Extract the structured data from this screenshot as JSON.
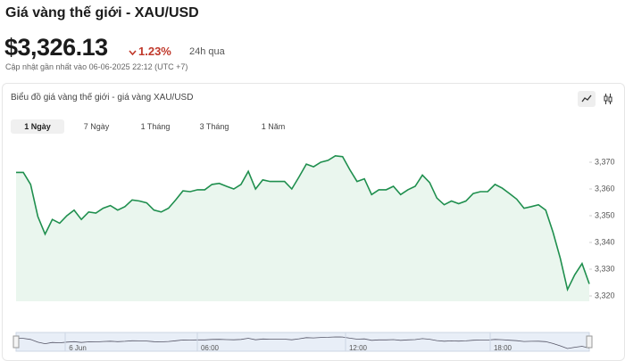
{
  "header": {
    "title": "Giá vàng thế giới - XAU/USD",
    "price": "$3,326.13",
    "change": "1.23%",
    "period": "24h qua",
    "updated": "Cập nhật gần nhất vào 06-06-2025 22:12 (UTC +7)"
  },
  "panel": {
    "title": "Biểu đồ giá vàng thế giới - giá vàng XAU/USD",
    "tabs": [
      "1 Ngày",
      "7 Ngày",
      "1 Tháng",
      "3 Tháng",
      "1 Năm"
    ]
  },
  "navigator": {
    "labels": [
      "6 Jun",
      "06:00",
      "12:00",
      "18:00"
    ]
  },
  "chart_data": {
    "type": "line",
    "color": "#1f8f4e",
    "values": [
      3366.2,
      3366.2,
      3361.7,
      3349.7,
      3343.1,
      3348.6,
      3347.2,
      3350,
      3352.1,
      3348.6,
      3351.4,
      3351,
      3352.8,
      3353.8,
      3352.1,
      3353.4,
      3355.9,
      3355.5,
      3354.8,
      3352.1,
      3351.4,
      3352.8,
      3355.9,
      3359.3,
      3359,
      3359.7,
      3359.7,
      3361.7,
      3362.1,
      3361,
      3360,
      3361.7,
      3366.6,
      3360,
      3363.4,
      3362.8,
      3362.8,
      3362.8,
      3360,
      3364.5,
      3369.3,
      3368.3,
      3370,
      3370.7,
      3372.4,
      3372.1,
      3367.2,
      3362.8,
      3363.8,
      3357.9,
      3359.7,
      3359.7,
      3361,
      3357.9,
      3359.7,
      3361,
      3365.2,
      3362.4,
      3356.6,
      3354.1,
      3355.5,
      3354.5,
      3355.5,
      3358.3,
      3359,
      3359,
      3361.7,
      3360.3,
      3358.3,
      3356.2,
      3352.8,
      3353.4,
      3354.1,
      3352.1,
      3343.8,
      3334.1,
      3322.4,
      3327.9,
      3332.1,
      3324.5
    ],
    "ylim": [
      3318,
      3378
    ],
    "yticks": [
      {
        "value": 3320,
        "label": "3,320"
      },
      {
        "value": 3330,
        "label": "3,330"
      },
      {
        "value": 3340,
        "label": "3,340"
      },
      {
        "value": 3350,
        "label": "3,350"
      },
      {
        "value": 3360,
        "label": "3,360"
      },
      {
        "value": 3370,
        "label": "3,370"
      }
    ]
  }
}
